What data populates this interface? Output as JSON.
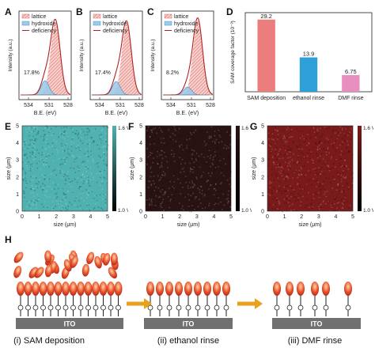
{
  "panel_labels": {
    "a": "A",
    "b": "B",
    "c": "C",
    "d": "D",
    "e": "E",
    "f": "F",
    "g": "G",
    "h": "H"
  },
  "xps": {
    "legend": [
      "lattice",
      "hydroxide",
      "deficiency"
    ],
    "ylabel": "Intensity (a.u.)",
    "xlabel": "B.E. (eV)",
    "ticks": [
      "534",
      "531",
      "528"
    ],
    "percentages": [
      "17.8%",
      "17.4%",
      "8.2%"
    ]
  },
  "chart_data": {
    "type": "bar",
    "categories": [
      "SAM deposition",
      "ethanol rinse",
      "DMF rinse"
    ],
    "values": [
      29.2,
      13.9,
      6.75
    ],
    "value_labels": [
      "29.2",
      "13.9",
      "6.75"
    ],
    "colors": [
      "#ec7d7d",
      "#2f9fd8",
      "#e88fbf"
    ],
    "ylabel": "SAM coverage factor (10⁻³)",
    "ylim": [
      0,
      32
    ]
  },
  "maps": {
    "ylabel": "size (μm)",
    "xlabel": "size (μm)",
    "ticks": [
      "0",
      "1",
      "2",
      "3",
      "4",
      "5"
    ],
    "cbar_top": "1.6 V",
    "cbar_bottom": "1.0 V",
    "colors": [
      "#4fb1b0",
      "#2a1212",
      "#7a1a1a"
    ]
  },
  "schematic": {
    "substrate": "ITO",
    "captions": [
      "(i)  SAM deposition",
      "(ii)  ethanol rinse",
      "(iii)  DMF rinse"
    ]
  }
}
